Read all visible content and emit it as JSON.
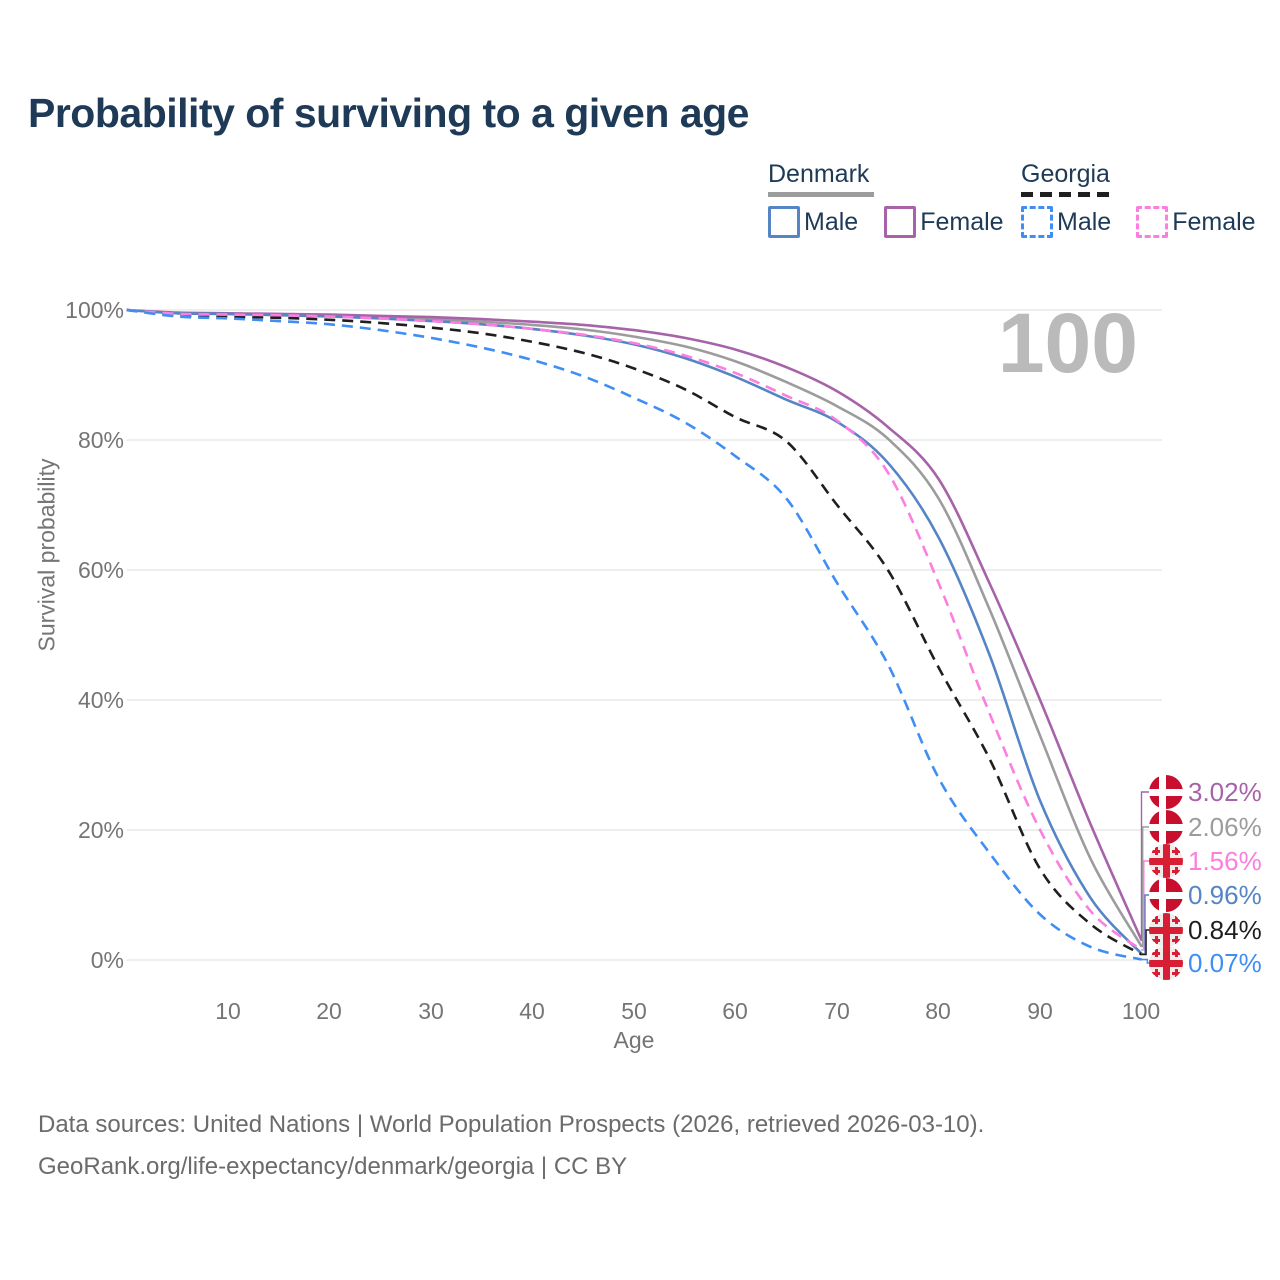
{
  "header": {
    "title": "Probability of surviving to a given age"
  },
  "watermark": {
    "text": "100"
  },
  "legend": {
    "groups": [
      {
        "label": "Denmark",
        "series": "dk_all",
        "items": [
          {
            "label": "Male",
            "series": "dk_male"
          },
          {
            "label": "Female",
            "series": "dk_female"
          }
        ]
      },
      {
        "label": "Georgia",
        "series": "ge_all",
        "items": [
          {
            "label": "Male",
            "series": "ge_male"
          },
          {
            "label": "Female",
            "series": "ge_female"
          }
        ]
      }
    ]
  },
  "y_axis": {
    "title": "Survival probability",
    "ticks": [
      "100%",
      "80%",
      "60%",
      "40%",
      "20%",
      "0%"
    ]
  },
  "x_axis": {
    "title": "Age",
    "ticks": [
      "10",
      "20",
      "30",
      "40",
      "50",
      "60",
      "70",
      "80",
      "90",
      "100"
    ]
  },
  "end_labels": [
    {
      "label": "3.02%",
      "series": "dk_female",
      "flag": "denmark-flag",
      "color": "#a763a9"
    },
    {
      "label": "2.06%",
      "series": "dk_all",
      "flag": "denmark-flag",
      "color": "#9c9c9c"
    },
    {
      "label": "1.56%",
      "series": "ge_female",
      "flag": "georgia-flag",
      "color": "#fb7ee0"
    },
    {
      "label": "0.96%",
      "series": "dk_male",
      "flag": "denmark-flag",
      "color": "#5585c4"
    },
    {
      "label": "0.84%",
      "series": "ge_all",
      "flag": "georgia-flag",
      "color": "#1f1f1f"
    },
    {
      "label": "0.07%",
      "series": "ge_male",
      "flag": "georgia-flag",
      "color": "#3f8ef5"
    }
  ],
  "footer": {
    "line1": "Data sources: United Nations | World Population Prospects (2026, retrieved 2026-03-10).",
    "line2": "GeoRank.org/life-expectancy/denmark/georgia | CC BY"
  },
  "colors": {
    "title_text": "#1e3a56",
    "axis_text": "#757575",
    "gridline": "#e4e4e4",
    "watermark": "#bababa",
    "denmark_flag_red": "#c8102e",
    "georgia_flag_red": "#d81e34"
  },
  "chart_data": {
    "type": "line",
    "title": "Probability of surviving to a given age",
    "xlabel": "Age",
    "ylabel": "Survival probability",
    "xlim": [
      0,
      100
    ],
    "ylim": [
      0,
      100
    ],
    "grid": "horizontal",
    "highlighted_age": 100,
    "x": [
      0,
      5,
      10,
      15,
      20,
      25,
      30,
      35,
      40,
      45,
      50,
      55,
      60,
      65,
      70,
      75,
      80,
      85,
      90,
      95,
      100
    ],
    "series": [
      {
        "id": "dk_all",
        "name": "Denmark (both sexes)",
        "color": "#9c9c9c",
        "dashed": false,
        "end_value_pct": 2.06,
        "values": [
          100,
          99.5,
          99.4,
          99.3,
          99.1,
          98.9,
          98.6,
          98.2,
          97.7,
          97.0,
          95.9,
          94.4,
          92.1,
          88.9,
          85.2,
          80.2,
          71.0,
          54.0,
          34.5,
          15.5,
          2.06
        ]
      },
      {
        "id": "dk_female",
        "name": "Denmark Female",
        "color": "#a763a9",
        "dashed": false,
        "end_value_pct": 3.02,
        "values": [
          100,
          99.6,
          99.5,
          99.4,
          99.3,
          99.1,
          98.9,
          98.6,
          98.2,
          97.7,
          96.9,
          95.7,
          93.9,
          91.2,
          87.5,
          82.0,
          74.0,
          58.0,
          40.0,
          20.8,
          3.02
        ]
      },
      {
        "id": "dk_male",
        "name": "Denmark Male",
        "color": "#5585c4",
        "dashed": false,
        "end_value_pct": 0.96,
        "values": [
          100,
          99.5,
          99.4,
          99.2,
          99.0,
          98.7,
          98.3,
          97.8,
          97.1,
          96.1,
          94.7,
          92.6,
          89.7,
          86.2,
          82.8,
          76.5,
          65.0,
          47.0,
          24.5,
          9.5,
          0.96
        ]
      },
      {
        "id": "ge_all",
        "name": "Georgia (both sexes)",
        "color": "#1f1f1f",
        "dashed": true,
        "end_value_pct": 0.84,
        "values": [
          100,
          99.2,
          99.0,
          98.8,
          98.5,
          98.0,
          97.3,
          96.4,
          95.1,
          93.4,
          91.0,
          87.8,
          83.5,
          79.8,
          70.0,
          60.0,
          45.0,
          31.0,
          14.0,
          5.5,
          0.84
        ]
      },
      {
        "id": "ge_female",
        "name": "Georgia Female",
        "color": "#fb7ee0",
        "dashed": true,
        "end_value_pct": 1.56,
        "values": [
          100,
          99.4,
          99.3,
          99.2,
          99.0,
          98.7,
          98.3,
          97.8,
          97.1,
          96.2,
          94.9,
          93.0,
          90.3,
          86.8,
          83.0,
          75.0,
          58.0,
          38.0,
          20.0,
          7.5,
          1.56
        ]
      },
      {
        "id": "ge_male",
        "name": "Georgia Male",
        "color": "#3f8ef5",
        "dashed": true,
        "end_value_pct": 0.07,
        "values": [
          100,
          99.0,
          98.7,
          98.3,
          97.8,
          96.9,
          95.7,
          94.2,
          92.3,
          89.8,
          86.5,
          82.7,
          77.5,
          71.0,
          58.0,
          45.5,
          28.0,
          16.5,
          7.0,
          2.0,
          0.07
        ]
      }
    ]
  }
}
